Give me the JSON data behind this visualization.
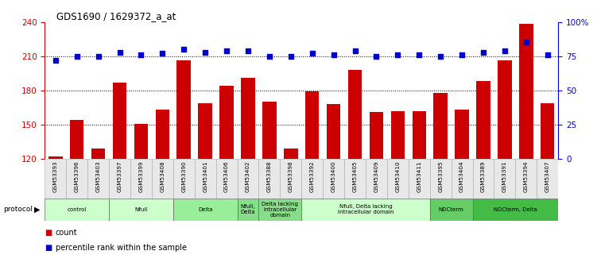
{
  "title": "GDS1690 / 1629372_a_at",
  "samples": [
    "GSM53393",
    "GSM53396",
    "GSM53403",
    "GSM53397",
    "GSM53399",
    "GSM53408",
    "GSM53390",
    "GSM53401",
    "GSM53406",
    "GSM53402",
    "GSM53388",
    "GSM53398",
    "GSM53392",
    "GSM53400",
    "GSM53405",
    "GSM53409",
    "GSM53410",
    "GSM53411",
    "GSM53395",
    "GSM53404",
    "GSM53389",
    "GSM53391",
    "GSM53394",
    "GSM53407"
  ],
  "counts": [
    122,
    154,
    129,
    187,
    151,
    163,
    206,
    169,
    184,
    191,
    170,
    129,
    179,
    168,
    198,
    161,
    162,
    162,
    178,
    163,
    188,
    206,
    238,
    169
  ],
  "percentile": [
    72,
    75,
    75,
    78,
    76,
    77,
    80,
    78,
    79,
    79,
    75,
    75,
    77,
    76,
    79,
    75,
    76,
    76,
    75,
    76,
    78,
    79,
    85,
    76
  ],
  "ylim_left": [
    120,
    240
  ],
  "ylim_right": [
    0,
    100
  ],
  "yticks_left": [
    120,
    150,
    180,
    210,
    240
  ],
  "yticks_right": [
    0,
    25,
    50,
    75,
    100
  ],
  "ytick_labels_right": [
    "0",
    "25",
    "50",
    "75",
    "100%"
  ],
  "bar_color": "#cc0000",
  "dot_color": "#0000cc",
  "protocol_groups": [
    {
      "label": "control",
      "start": 0,
      "end": 2,
      "color": "#ccffcc"
    },
    {
      "label": "Nfull",
      "start": 3,
      "end": 5,
      "color": "#ccffcc"
    },
    {
      "label": "Delta",
      "start": 6,
      "end": 8,
      "color": "#99ee99"
    },
    {
      "label": "Nfull,\nDelta",
      "start": 9,
      "end": 9,
      "color": "#88dd88"
    },
    {
      "label": "Delta lacking\nintracellular\ndomain",
      "start": 10,
      "end": 11,
      "color": "#88dd88"
    },
    {
      "label": "Nfull, Delta lacking\nintracellular domain",
      "start": 12,
      "end": 17,
      "color": "#ccffcc"
    },
    {
      "label": "NDCterm",
      "start": 18,
      "end": 19,
      "color": "#66cc66"
    },
    {
      "label": "NDCterm, Delta",
      "start": 20,
      "end": 23,
      "color": "#44bb44"
    }
  ],
  "legend_bar_label": "count",
  "legend_dot_label": "percentile rank within the sample",
  "protocol_label": "protocol"
}
